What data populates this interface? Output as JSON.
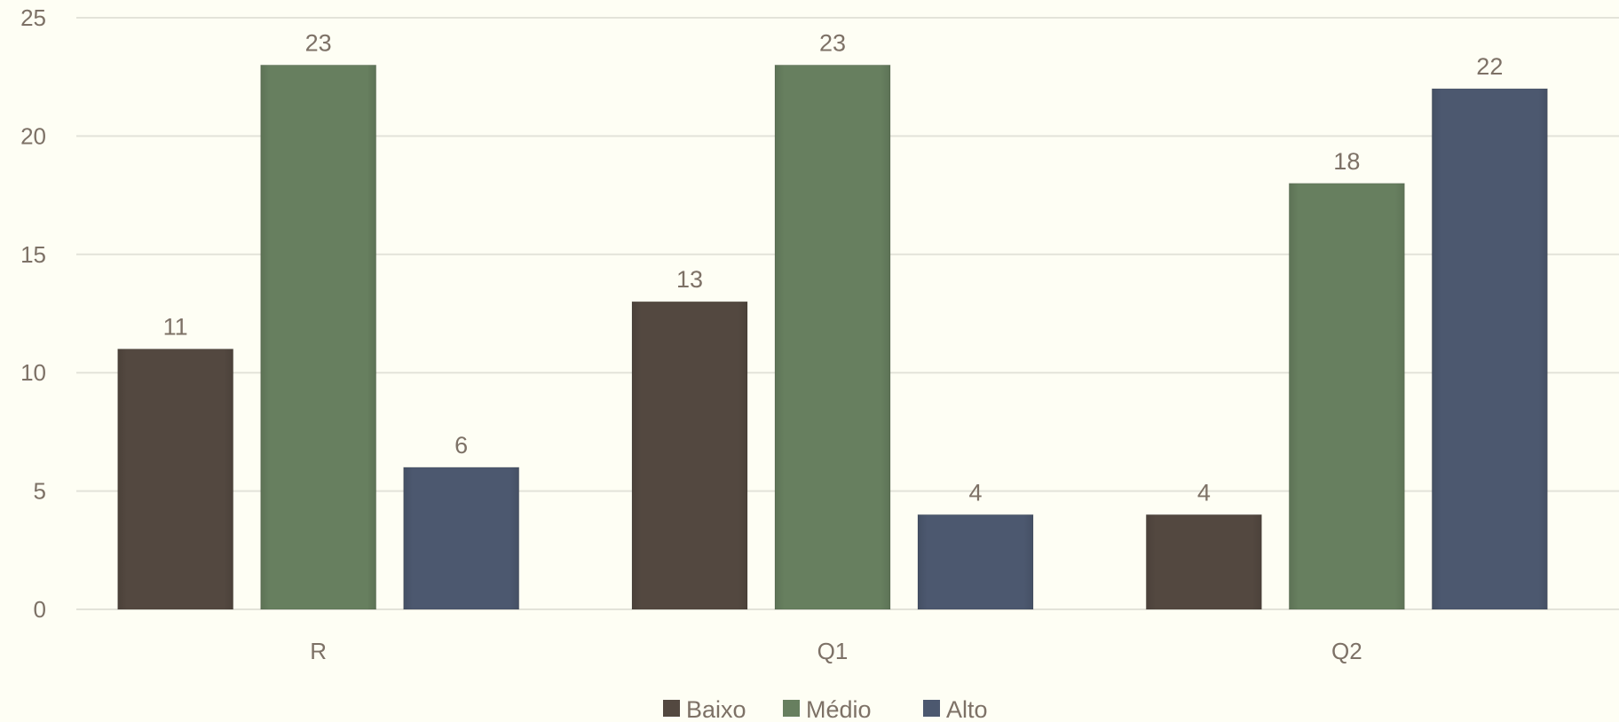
{
  "chart_data": {
    "type": "bar",
    "title": "",
    "xlabel": "",
    "ylabel": "",
    "categories": [
      "R",
      "Q1",
      "Q2"
    ],
    "series": [
      {
        "name": "Baixo",
        "color": "#534840",
        "values": [
          11,
          13,
          4
        ]
      },
      {
        "name": "Médio",
        "color": "#677f5f",
        "values": [
          23,
          23,
          18
        ]
      },
      {
        "name": "Alto",
        "color": "#4c586f",
        "values": [
          6,
          4,
          22
        ]
      }
    ],
    "ylim": [
      0,
      25
    ],
    "yticks": [
      0,
      5,
      10,
      15,
      20,
      25
    ],
    "grid": true,
    "data_labels": true,
    "legend_position": "bottom"
  }
}
